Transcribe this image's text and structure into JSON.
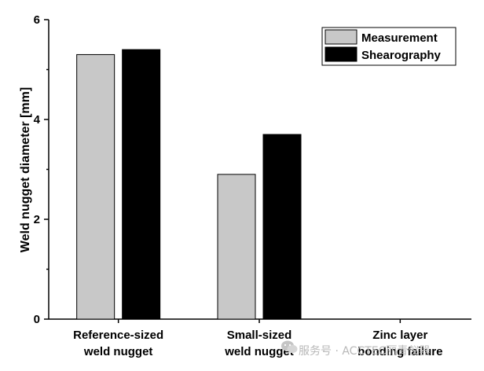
{
  "chart_data": {
    "type": "bar",
    "categories": [
      [
        "Reference-sized",
        "weld nugget"
      ],
      [
        "Small-sized",
        "weld nugget"
      ],
      [
        "Zinc layer",
        "bonding failure"
      ]
    ],
    "series": [
      {
        "name": "Measurement",
        "values": [
          5.3,
          2.9,
          null
        ],
        "color": "#c8c8c8"
      },
      {
        "name": "Shearography",
        "values": [
          5.4,
          3.7,
          null
        ],
        "color": "#000000"
      }
    ],
    "ylabel": "Weld nugget diameter [mm]",
    "xlabel": "",
    "ylim": [
      0,
      6
    ],
    "yticks": [
      0,
      2,
      4,
      6
    ],
    "legend_position": "top-right",
    "grid": false
  },
  "watermark": {
    "text": "服务号 · ACCTEC丽青仪器",
    "icon": "wechat-icon"
  }
}
